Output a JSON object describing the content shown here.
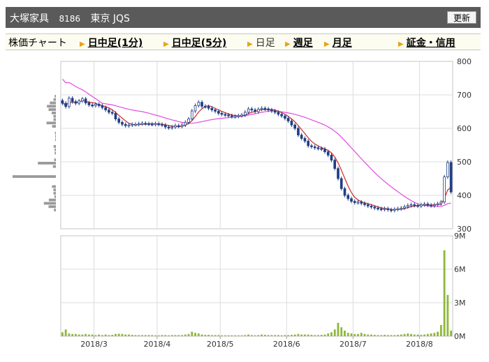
{
  "header": {
    "company": "大塚家具",
    "code": "8186",
    "market": "東京 JQS",
    "refresh_label": "更新"
  },
  "nav": {
    "chart_label": "株価チャート",
    "items": [
      {
        "label": "日中足(1分)",
        "link": true
      },
      {
        "label": "日中足(5分)",
        "link": true
      },
      {
        "label": "日足",
        "link": false
      },
      {
        "label": "週足",
        "link": true
      },
      {
        "label": "月足",
        "link": true
      },
      {
        "label": "証金・信用",
        "link": true
      }
    ]
  },
  "chart_data": {
    "type": "candlestick",
    "price_axis": {
      "min": 300,
      "max": 800,
      "ticks": [
        "800",
        "700",
        "600",
        "500",
        "400",
        "300"
      ]
    },
    "volume_axis": {
      "min": 0,
      "max": 9,
      "ticks": [
        "9M",
        "6M",
        "3M",
        "0M"
      ]
    },
    "x_labels": [
      {
        "label": "2018/3",
        "day": 10
      },
      {
        "label": "2018/4",
        "day": 29
      },
      {
        "label": "2018/5",
        "day": 48
      },
      {
        "label": "2018/6",
        "day": 68
      },
      {
        "label": "2018/7",
        "day": 88
      },
      {
        "label": "2018/8",
        "day": 108
      }
    ],
    "day_count": 118,
    "close": [
      675,
      665,
      690,
      680,
      675,
      682,
      688,
      676,
      670,
      668,
      672,
      668,
      662,
      655,
      648,
      645,
      628,
      618,
      612,
      608,
      610,
      612,
      612,
      614,
      615,
      614,
      613,
      612,
      614,
      612,
      610,
      604,
      602,
      604,
      608,
      606,
      610,
      618,
      628,
      652,
      668,
      678,
      666,
      665,
      660,
      655,
      651,
      645,
      642,
      640,
      638,
      635,
      636,
      638,
      640,
      648,
      658,
      655,
      650,
      657,
      660,
      658,
      655,
      652,
      648,
      642,
      637,
      630,
      622,
      610,
      600,
      580,
      570,
      562,
      548,
      545,
      542,
      540,
      538,
      530,
      520,
      505,
      480,
      450,
      420,
      400,
      390,
      382,
      378,
      380,
      376,
      372,
      368,
      365,
      362,
      360,
      358,
      360,
      357,
      355,
      358,
      360,
      362,
      366,
      370,
      372,
      370,
      368,
      372,
      374,
      371,
      369,
      372,
      375,
      380,
      455,
      498,
      410
    ],
    "volume_m": [
      0.35,
      0.6,
      0.25,
      0.2,
      0.2,
      0.15,
      0.15,
      0.2,
      0.15,
      0.15,
      0.1,
      0.15,
      0.1,
      0.15,
      0.1,
      0.12,
      0.2,
      0.22,
      0.2,
      0.15,
      0.15,
      0.12,
      0.1,
      0.1,
      0.1,
      0.1,
      0.1,
      0.1,
      0.08,
      0.08,
      0.1,
      0.1,
      0.08,
      0.1,
      0.1,
      0.1,
      0.1,
      0.15,
      0.2,
      0.4,
      0.3,
      0.25,
      0.15,
      0.12,
      0.12,
      0.1,
      0.1,
      0.1,
      0.08,
      0.08,
      0.08,
      0.08,
      0.08,
      0.08,
      0.08,
      0.1,
      0.15,
      0.1,
      0.08,
      0.1,
      0.15,
      0.12,
      0.1,
      0.1,
      0.1,
      0.1,
      0.08,
      0.1,
      0.1,
      0.12,
      0.15,
      0.2,
      0.15,
      0.15,
      0.15,
      0.12,
      0.1,
      0.1,
      0.12,
      0.15,
      0.25,
      0.35,
      0.6,
      1.2,
      0.8,
      0.5,
      0.3,
      0.25,
      0.2,
      0.2,
      0.3,
      0.2,
      0.15,
      0.15,
      0.12,
      0.1,
      0.1,
      0.12,
      0.1,
      0.1,
      0.1,
      0.12,
      0.15,
      0.2,
      0.25,
      0.2,
      0.15,
      0.15,
      0.12,
      0.15,
      0.2,
      0.25,
      0.3,
      0.4,
      1.0,
      7.7,
      3.7,
      0.5
    ],
    "ma_short_color": "#cc2a2a",
    "ma_long_color": "#e04ae0",
    "candle_color": "#1f3f86",
    "volume_color": "#8fb83c",
    "profile_color": "#9a9a9a"
  }
}
